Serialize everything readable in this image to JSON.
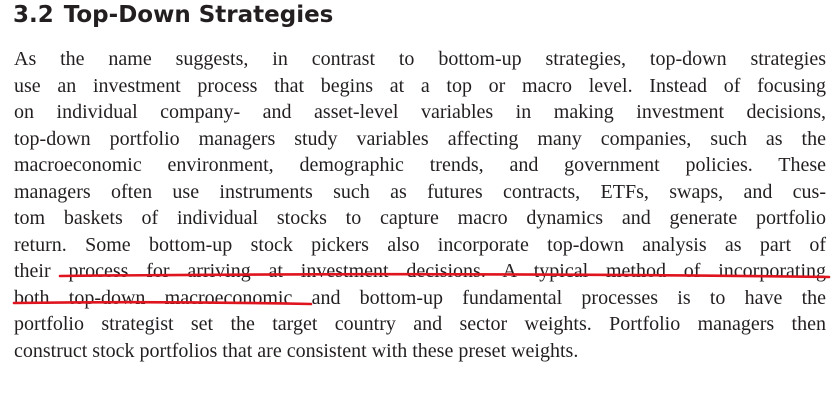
{
  "section": {
    "number": "3.2",
    "title": "Top-Down Strategies"
  },
  "paragraph_lines": [
    "As the name suggests, in contrast to bottom-up strategies, top-down strategies",
    "use an investment process that begins at a top or macro level. Instead of focusing",
    "on individual company- and asset-level variables in making investment decisions,",
    "top-down portfolio managers study variables affecting many companies, such as the",
    "macroeconomic environment, demographic trends, and government policies. These",
    "managers often use instruments such as futures contracts, ETFs, swaps, and cus-",
    "tom baskets of individual stocks to capture macro dynamics and generate portfolio",
    "return. Some bottom-up stock pickers also incorporate top-down analysis as part of",
    "their process for arriving at investment decisions. A typical method of incorporating",
    "both top-down macroeconomic and bottom-up fundamental processes is to have the",
    "portfolio strategist set the target country and sector weights. Portfolio managers then",
    "construct stock portfolios that are consistent with these preset weights."
  ],
  "annotation": {
    "type": "underline",
    "color": "#e0141e"
  }
}
